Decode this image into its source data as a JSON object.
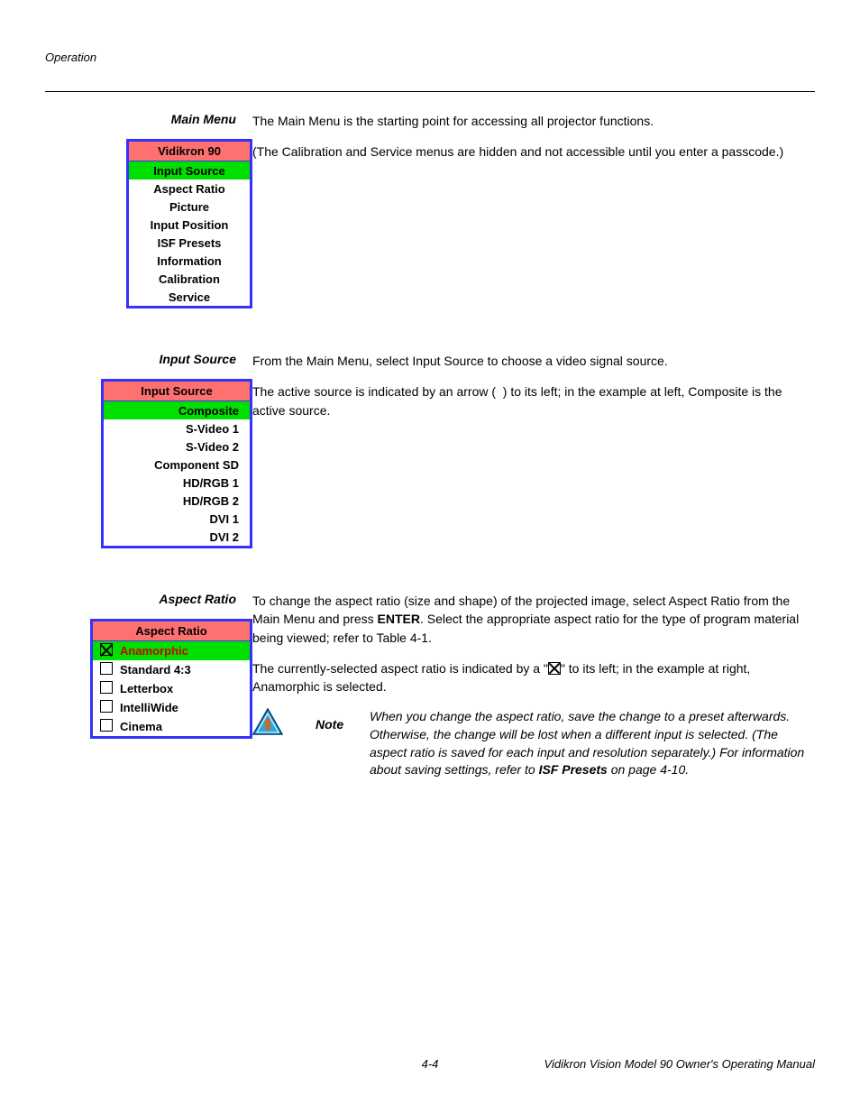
{
  "page": {
    "header_label": "Operation",
    "footer_page": "4-4",
    "footer_manual": "Vidikron Vision Model 90 Owner's Operating Manual"
  },
  "colors": {
    "menu_border": "#3333ff",
    "menu_header_bg": "#ff7070",
    "menu_active_bg": "#00e000",
    "active_text_red": "#cc0000"
  },
  "sections": {
    "main_menu": {
      "title": "Main Menu",
      "para1": "The Main Menu is the starting point for accessing all projector functions.",
      "para2": "(The Calibration and Service menus are hidden and not accessible until you enter a passcode.)",
      "menu_header": "Vidikron 90",
      "items": [
        {
          "label": "Input Source",
          "active": true
        },
        {
          "label": "Aspect Ratio"
        },
        {
          "label": "Picture"
        },
        {
          "label": "Input Position"
        },
        {
          "label": "ISF Presets"
        },
        {
          "label": "Information"
        },
        {
          "label": "Calibration"
        },
        {
          "label": "Service"
        }
      ]
    },
    "input_source": {
      "title": "Input Source",
      "para1": "From the Main Menu, select Input Source to choose a video signal source.",
      "para2_a": "The active source is indicated by an arrow (",
      "para2_b": ") to its left; in the example at left, Composite is the active source.",
      "menu_header": "Input Source",
      "items": [
        {
          "label": "Composite",
          "active": true,
          "marker": true
        },
        {
          "label": "S-Video 1"
        },
        {
          "label": "S-Video 2"
        },
        {
          "label": "Component SD"
        },
        {
          "label": "HD/RGB 1"
        },
        {
          "label": "HD/RGB 2"
        },
        {
          "label": "DVI 1"
        },
        {
          "label": "DVI 2"
        }
      ]
    },
    "aspect_ratio": {
      "title": "Aspect Ratio",
      "para1_a": "To change the aspect ratio (size and shape) of the projected image, select Aspect Ratio from the Main Menu and press ",
      "para1_enter": "ENTER",
      "para1_b": ". Select the appropriate aspect ratio for the type of program material being viewed; refer to Table 4-1.",
      "para2_a": "The currently-selected aspect ratio is indicated by a \"",
      "para2_b": "\" to its left; in the example at right, Anamorphic is selected.",
      "menu_header": "Aspect Ratio",
      "items": [
        {
          "label": "Anamorphic",
          "active": true,
          "checked": true
        },
        {
          "label": "Standard 4:3"
        },
        {
          "label": "Letterbox"
        },
        {
          "label": "IntelliWide"
        },
        {
          "label": "Cinema"
        }
      ],
      "note_label": "Note",
      "note_text_a": "When you change the aspect ratio, save the change to a preset afterwards. Otherwise, the change will be lost when a different input is selected. (The aspect ratio is saved for each input and resolution separately.) For information about saving settings, refer to ",
      "note_text_b": "ISF Presets",
      "note_text_c": " on page 4-10."
    }
  }
}
